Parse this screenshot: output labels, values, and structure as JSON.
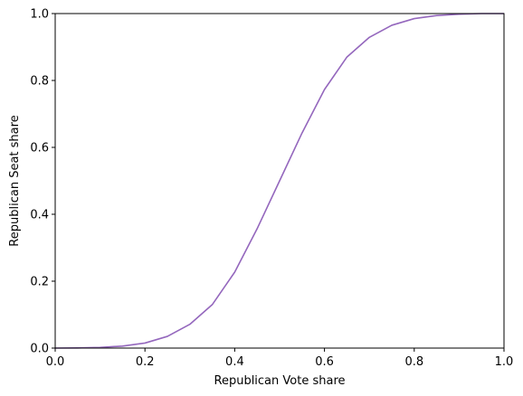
{
  "chart_data": {
    "type": "line",
    "title": "",
    "xlabel": "Republican Vote share",
    "ylabel": "Republican Seat share",
    "xlim": [
      0.0,
      1.0
    ],
    "ylim": [
      0.0,
      1.0
    ],
    "xticks": [
      "0.0",
      "0.2",
      "0.4",
      "0.6",
      "0.8",
      "1.0"
    ],
    "yticks": [
      "0.0",
      "0.2",
      "0.4",
      "0.6",
      "0.8",
      "1.0"
    ],
    "grid": false,
    "legend": false,
    "series": [
      {
        "color": "#9467bd",
        "x": [
          0.0,
          0.05,
          0.1,
          0.15,
          0.2,
          0.25,
          0.3,
          0.35,
          0.4,
          0.45,
          0.5,
          0.55,
          0.6,
          0.65,
          0.7,
          0.75,
          0.8,
          0.85,
          0.9,
          0.95,
          1.0
        ],
        "y": [
          0.0,
          0.0004,
          0.002,
          0.006,
          0.015,
          0.035,
          0.071,
          0.13,
          0.227,
          0.357,
          0.5,
          0.643,
          0.773,
          0.87,
          0.929,
          0.965,
          0.985,
          0.994,
          0.998,
          1.0,
          1.0
        ]
      }
    ]
  }
}
